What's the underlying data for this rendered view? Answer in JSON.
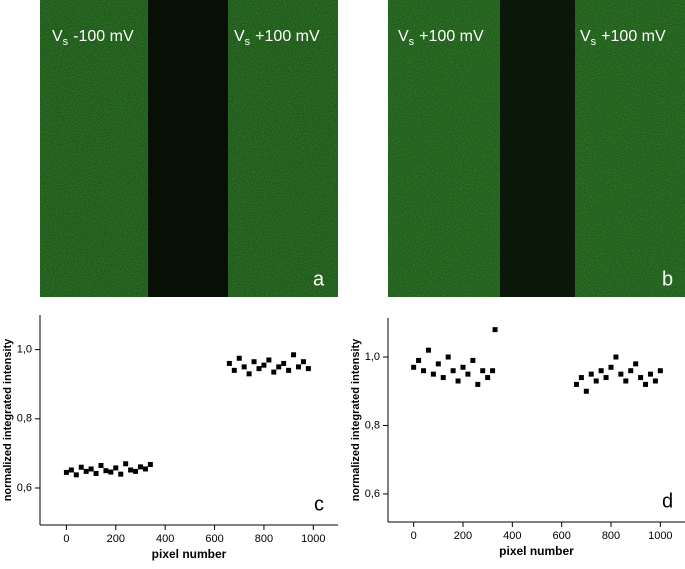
{
  "panels": [
    {
      "letter": "a",
      "left": {
        "symbol": "V",
        "subscript": "s",
        "value": "-100 mV"
      },
      "right": {
        "symbol": "V",
        "subscript": "s",
        "value": "+100 mV"
      }
    },
    {
      "letter": "b",
      "left": {
        "symbol": "V",
        "subscript": "s",
        "value": "+100 mV"
      },
      "right": {
        "symbol": "V",
        "subscript": "s",
        "value": "+100 mV"
      }
    }
  ],
  "chart_data": [
    {
      "type": "scatter",
      "letter": "c",
      "x_label": "pixel number",
      "y_label": "normalized integrated intensity",
      "color": "#000000",
      "x": [
        0,
        20,
        40,
        60,
        80,
        100,
        120,
        140,
        160,
        180,
        200,
        220,
        240,
        260,
        280,
        300,
        320,
        340,
        660,
        680,
        700,
        720,
        740,
        760,
        780,
        800,
        820,
        840,
        860,
        880,
        900,
        920,
        940,
        960,
        980
      ],
      "values": [
        0.645,
        0.652,
        0.638,
        0.66,
        0.648,
        0.655,
        0.642,
        0.665,
        0.65,
        0.646,
        0.658,
        0.64,
        0.67,
        0.652,
        0.648,
        0.661,
        0.655,
        0.668,
        0.96,
        0.94,
        0.975,
        0.95,
        0.93,
        0.965,
        0.945,
        0.955,
        0.97,
        0.935,
        0.95,
        0.96,
        0.94,
        0.985,
        0.95,
        0.965,
        0.945
      ],
      "xlim": [
        -107,
        1100
      ],
      "ylim": [
        0.493,
        1.1
      ],
      "xticks": [
        0,
        200,
        400,
        600,
        800,
        1000
      ],
      "yticks": [
        {
          "value": 0.6,
          "label": "0,6"
        },
        {
          "value": 0.8,
          "label": "0,8"
        },
        {
          "value": 1.0,
          "label": "1,0"
        }
      ]
    },
    {
      "type": "scatter",
      "letter": "d",
      "x_label": "pixel number",
      "y_label": "normalized integrated intensity",
      "color": "#000000",
      "x": [
        0,
        20,
        40,
        60,
        80,
        100,
        120,
        140,
        160,
        180,
        200,
        220,
        240,
        260,
        280,
        300,
        320,
        330,
        660,
        680,
        700,
        720,
        740,
        760,
        780,
        800,
        820,
        840,
        860,
        880,
        900,
        920,
        940,
        960,
        980,
        1000
      ],
      "values": [
        0.97,
        0.99,
        0.96,
        1.02,
        0.95,
        0.98,
        0.94,
        1.0,
        0.96,
        0.93,
        0.97,
        0.95,
        0.99,
        0.92,
        0.96,
        0.94,
        0.96,
        1.08,
        0.92,
        0.94,
        0.9,
        0.95,
        0.93,
        0.96,
        0.94,
        0.97,
        1.0,
        0.95,
        0.93,
        0.96,
        0.98,
        0.94,
        0.92,
        0.95,
        0.93,
        0.96
      ],
      "xlim": [
        -104,
        1100
      ],
      "ylim": [
        0.518,
        1.114
      ],
      "xticks": [
        0,
        200,
        400,
        600,
        800,
        1000
      ],
      "yticks": [
        {
          "value": 0.6,
          "label": "0,6"
        },
        {
          "value": 0.8,
          "label": "0,8"
        },
        {
          "value": 1.0,
          "label": "1,0"
        }
      ]
    }
  ]
}
